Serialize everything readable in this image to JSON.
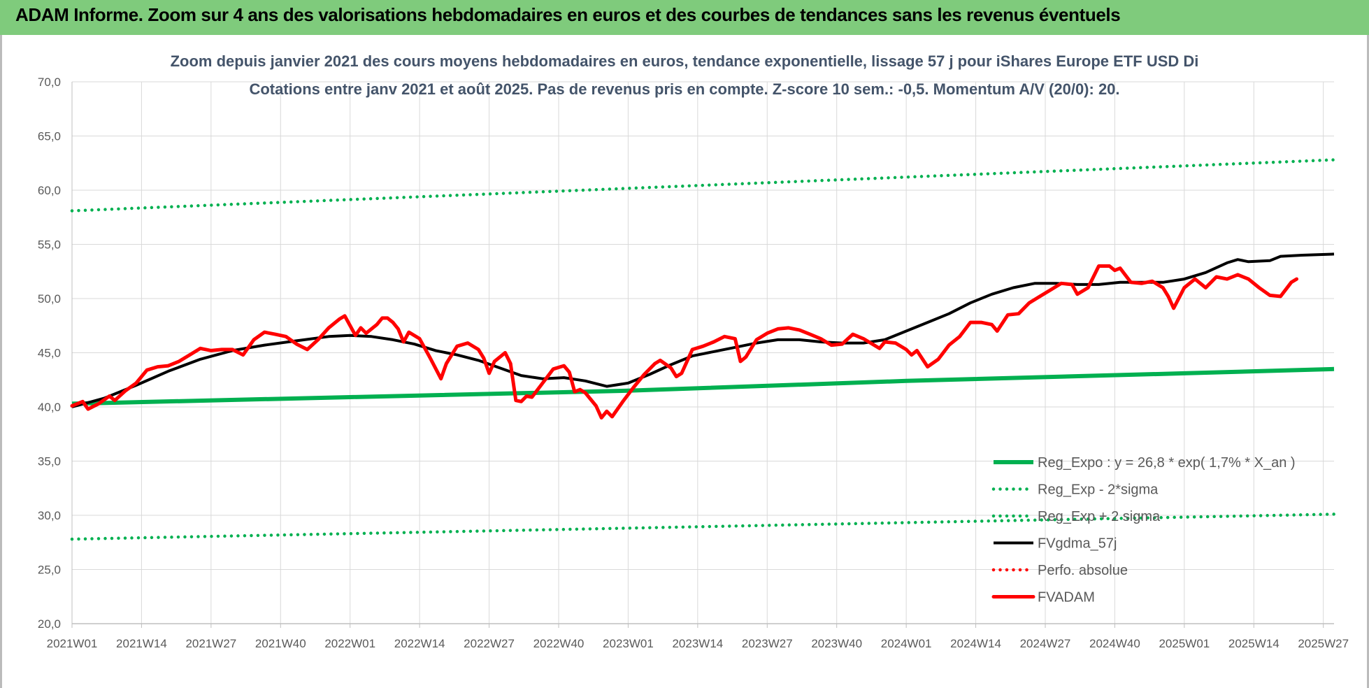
{
  "banner": {
    "title": "ADAM Informe. Zoom sur 4 ans des valorisations hebdomadaires en euros et des courbes de tendances sans les revenus éventuels"
  },
  "chart_data": {
    "type": "line",
    "title_line1": "Zoom depuis janvier 2021 des cours moyens hebdomadaires en euros, tendance exponentielle, lissage 57 j pour iShares Europe ETF USD Di",
    "title_line2": "Cotations entre janv 2021 et août 2025.  Pas de revenus pris en compte.  Z-score 10 sem.: -0,5. Momentum A/V (20/0): 20.",
    "ylim": [
      20,
      70
    ],
    "ytick_labels": [
      "70,0",
      "65,0",
      "60,0",
      "55,0",
      "50,0",
      "45,0",
      "40,0",
      "35,0",
      "30,0",
      "25,0",
      "20,0"
    ],
    "xtick_labels": [
      "2021W01",
      "2021W14",
      "2021W27",
      "2021W40",
      "2022W01",
      "2022W14",
      "2022W27",
      "2022W40",
      "2023W01",
      "2023W14",
      "2023W27",
      "2023W40",
      "2024W01",
      "2024W14",
      "2024W27",
      "2024W40",
      "2025W01",
      "2025W14",
      "2025W27"
    ],
    "xlim_weeks": [
      0,
      236
    ],
    "grid": "vertical and horizontal",
    "legend_position": "bottom-right",
    "series": [
      {
        "name": "Reg_Expo : y = 26,8 * exp( 1,7% *  X_an )",
        "color": "#00b050",
        "style": "solid",
        "points": [
          [
            0,
            40.3
          ],
          [
            52,
            40.9
          ],
          [
            104,
            41.5
          ],
          [
            156,
            42.4
          ],
          [
            208,
            43.1
          ],
          [
            236,
            43.5
          ]
        ]
      },
      {
        "name": "Reg_Exp - 2*sigma",
        "color": "#00b050",
        "style": "dotted",
        "points": [
          [
            0,
            27.8
          ],
          [
            236,
            30.1
          ]
        ]
      },
      {
        "name": "Reg_Exp + 2 sigma",
        "color": "#00b050",
        "style": "dotted",
        "points": [
          [
            0,
            58.1
          ],
          [
            236,
            62.8
          ]
        ]
      },
      {
        "name": "FVgdma_57j",
        "color": "#000000",
        "style": "solid",
        "points": [
          [
            0,
            40.0
          ],
          [
            6,
            40.8
          ],
          [
            12,
            42.0
          ],
          [
            18,
            43.3
          ],
          [
            24,
            44.4
          ],
          [
            30,
            45.2
          ],
          [
            36,
            45.7
          ],
          [
            42,
            46.1
          ],
          [
            48,
            46.5
          ],
          [
            52,
            46.6
          ],
          [
            56,
            46.5
          ],
          [
            60,
            46.2
          ],
          [
            64,
            45.8
          ],
          [
            68,
            45.2
          ],
          [
            72,
            44.8
          ],
          [
            76,
            44.3
          ],
          [
            80,
            43.6
          ],
          [
            84,
            42.9
          ],
          [
            88,
            42.6
          ],
          [
            92,
            42.7
          ],
          [
            96,
            42.4
          ],
          [
            100,
            41.9
          ],
          [
            104,
            42.2
          ],
          [
            108,
            43.0
          ],
          [
            112,
            43.9
          ],
          [
            116,
            44.7
          ],
          [
            120,
            45.1
          ],
          [
            124,
            45.5
          ],
          [
            128,
            45.9
          ],
          [
            132,
            46.2
          ],
          [
            136,
            46.2
          ],
          [
            140,
            46.0
          ],
          [
            144,
            45.9
          ],
          [
            148,
            45.9
          ],
          [
            152,
            46.2
          ],
          [
            156,
            47.0
          ],
          [
            160,
            47.8
          ],
          [
            164,
            48.6
          ],
          [
            168,
            49.6
          ],
          [
            172,
            50.4
          ],
          [
            176,
            51.0
          ],
          [
            180,
            51.4
          ],
          [
            184,
            51.4
          ],
          [
            188,
            51.3
          ],
          [
            192,
            51.3
          ],
          [
            196,
            51.5
          ],
          [
            200,
            51.5
          ],
          [
            204,
            51.5
          ],
          [
            208,
            51.8
          ],
          [
            212,
            52.4
          ],
          [
            216,
            53.3
          ],
          [
            218,
            53.6
          ],
          [
            220,
            53.4
          ],
          [
            224,
            53.5
          ],
          [
            226,
            53.9
          ],
          [
            230,
            54.0
          ],
          [
            236,
            54.1
          ]
        ]
      },
      {
        "name": "Perfo. absolue",
        "color": "#ff0000",
        "style": "dotted",
        "points": []
      },
      {
        "name": "FVADAM",
        "color": "#ff0000",
        "style": "solid",
        "points": [
          [
            0,
            40.1
          ],
          [
            2,
            40.5
          ],
          [
            3,
            39.8
          ],
          [
            5,
            40.3
          ],
          [
            7,
            41.0
          ],
          [
            8,
            40.6
          ],
          [
            10,
            41.5
          ],
          [
            12,
            42.2
          ],
          [
            14,
            43.4
          ],
          [
            16,
            43.7
          ],
          [
            18,
            43.8
          ],
          [
            20,
            44.2
          ],
          [
            22,
            44.8
          ],
          [
            24,
            45.4
          ],
          [
            26,
            45.2
          ],
          [
            28,
            45.3
          ],
          [
            30,
            45.3
          ],
          [
            32,
            44.8
          ],
          [
            34,
            46.2
          ],
          [
            36,
            46.9
          ],
          [
            38,
            46.7
          ],
          [
            40,
            46.5
          ],
          [
            42,
            45.8
          ],
          [
            44,
            45.3
          ],
          [
            46,
            46.2
          ],
          [
            48,
            47.3
          ],
          [
            50,
            48.1
          ],
          [
            51,
            48.4
          ],
          [
            52,
            47.5
          ],
          [
            53,
            46.6
          ],
          [
            54,
            47.3
          ],
          [
            55,
            46.8
          ],
          [
            57,
            47.6
          ],
          [
            58,
            48.2
          ],
          [
            59,
            48.2
          ],
          [
            60,
            47.8
          ],
          [
            61,
            47.2
          ],
          [
            62,
            46.0
          ],
          [
            63,
            46.9
          ],
          [
            65,
            46.3
          ],
          [
            67,
            44.5
          ],
          [
            69,
            42.6
          ],
          [
            70,
            44.0
          ],
          [
            72,
            45.6
          ],
          [
            74,
            45.9
          ],
          [
            76,
            45.3
          ],
          [
            77,
            44.5
          ],
          [
            78,
            43.1
          ],
          [
            79,
            44.2
          ],
          [
            81,
            45.0
          ],
          [
            82,
            44.0
          ],
          [
            83,
            40.6
          ],
          [
            84,
            40.5
          ],
          [
            85,
            41.0
          ],
          [
            86,
            40.9
          ],
          [
            88,
            42.2
          ],
          [
            90,
            43.5
          ],
          [
            92,
            43.8
          ],
          [
            93,
            43.2
          ],
          [
            94,
            41.4
          ],
          [
            95,
            41.6
          ],
          [
            96,
            41.3
          ],
          [
            98,
            40.1
          ],
          [
            99,
            39.0
          ],
          [
            100,
            39.6
          ],
          [
            101,
            39.1
          ],
          [
            103,
            40.5
          ],
          [
            105,
            41.8
          ],
          [
            107,
            43.0
          ],
          [
            109,
            44.0
          ],
          [
            110,
            44.3
          ],
          [
            112,
            43.6
          ],
          [
            113,
            42.8
          ],
          [
            114,
            43.1
          ],
          [
            116,
            45.3
          ],
          [
            118,
            45.6
          ],
          [
            120,
            46.0
          ],
          [
            122,
            46.5
          ],
          [
            124,
            46.3
          ],
          [
            125,
            44.2
          ],
          [
            126,
            44.6
          ],
          [
            128,
            46.2
          ],
          [
            130,
            46.8
          ],
          [
            132,
            47.2
          ],
          [
            134,
            47.3
          ],
          [
            136,
            47.1
          ],
          [
            138,
            46.7
          ],
          [
            140,
            46.3
          ],
          [
            142,
            45.7
          ],
          [
            144,
            45.8
          ],
          [
            146,
            46.7
          ],
          [
            148,
            46.3
          ],
          [
            150,
            45.7
          ],
          [
            151,
            45.4
          ],
          [
            152,
            46.0
          ],
          [
            154,
            45.9
          ],
          [
            156,
            45.3
          ],
          [
            157,
            44.8
          ],
          [
            158,
            45.2
          ],
          [
            160,
            43.7
          ],
          [
            162,
            44.4
          ],
          [
            164,
            45.7
          ],
          [
            166,
            46.5
          ],
          [
            168,
            47.8
          ],
          [
            170,
            47.8
          ],
          [
            172,
            47.6
          ],
          [
            173,
            47.0
          ],
          [
            175,
            48.5
          ],
          [
            177,
            48.6
          ],
          [
            179,
            49.6
          ],
          [
            181,
            50.2
          ],
          [
            183,
            50.8
          ],
          [
            185,
            51.4
          ],
          [
            187,
            51.3
          ],
          [
            188,
            50.4
          ],
          [
            190,
            51.0
          ],
          [
            192,
            53.0
          ],
          [
            194,
            53.0
          ],
          [
            195,
            52.6
          ],
          [
            196,
            52.8
          ],
          [
            198,
            51.5
          ],
          [
            200,
            51.4
          ],
          [
            202,
            51.6
          ],
          [
            204,
            51.0
          ],
          [
            205,
            50.2
          ],
          [
            206,
            49.1
          ],
          [
            208,
            51.0
          ],
          [
            210,
            51.8
          ],
          [
            212,
            51.0
          ],
          [
            214,
            52.0
          ],
          [
            216,
            51.8
          ],
          [
            218,
            52.2
          ],
          [
            220,
            51.8
          ],
          [
            222,
            51.0
          ],
          [
            224,
            50.3
          ],
          [
            226,
            50.2
          ],
          [
            228,
            51.5
          ],
          [
            229,
            51.8
          ]
        ]
      }
    ]
  }
}
